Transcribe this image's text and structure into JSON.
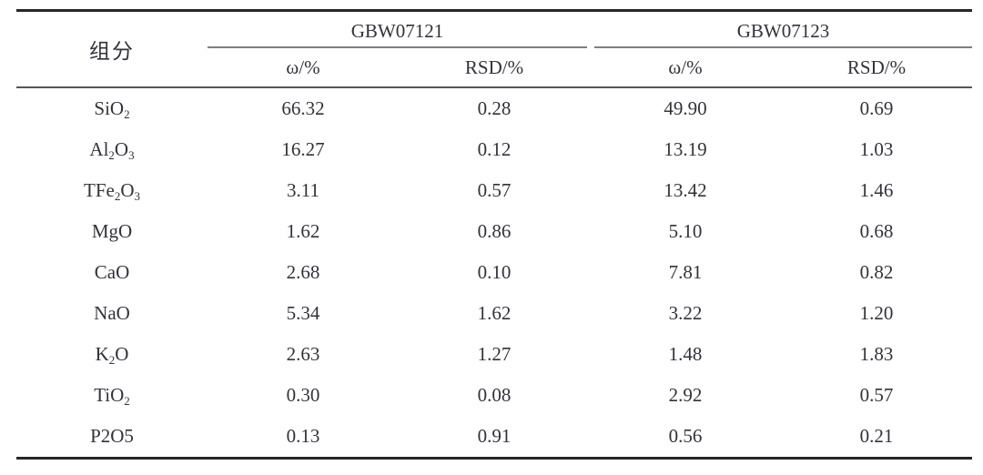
{
  "table": {
    "component_header": "组分",
    "groups": [
      {
        "name": "GBW07121",
        "subheaders": [
          "ω/%",
          "RSD/%"
        ]
      },
      {
        "name": "GBW07123",
        "subheaders": [
          "ω/%",
          "RSD/%"
        ]
      }
    ],
    "rows": [
      {
        "component": "SiO_2",
        "values": [
          "66.32",
          "0.28",
          "49.90",
          "0.69"
        ]
      },
      {
        "component": "Al_2O_3",
        "values": [
          "16.27",
          "0.12",
          "13.19",
          "1.03"
        ]
      },
      {
        "component": "TFe_2O_3",
        "values": [
          "3.11",
          "0.57",
          "13.42",
          "1.46"
        ]
      },
      {
        "component": "MgO",
        "values": [
          "1.62",
          "0.86",
          "5.10",
          "0.68"
        ]
      },
      {
        "component": "CaO",
        "values": [
          "2.68",
          "0.10",
          "7.81",
          "0.82"
        ]
      },
      {
        "component": "NaO",
        "values": [
          "5.34",
          "1.62",
          "3.22",
          "1.20"
        ]
      },
      {
        "component": "K_2O",
        "values": [
          "2.63",
          "1.27",
          "1.48",
          "1.83"
        ]
      },
      {
        "component": "TiO_2",
        "values": [
          "0.30",
          "0.08",
          "2.92",
          "0.57"
        ]
      },
      {
        "component": "P2O5",
        "values": [
          "0.13",
          "0.91",
          "0.56",
          "0.21"
        ]
      }
    ],
    "style": {
      "text_color": "#32333a",
      "heavy_rule_color": "#26272b",
      "mid_rule_color": "#56575c",
      "light_rule_color": "#7e7f84"
    }
  }
}
